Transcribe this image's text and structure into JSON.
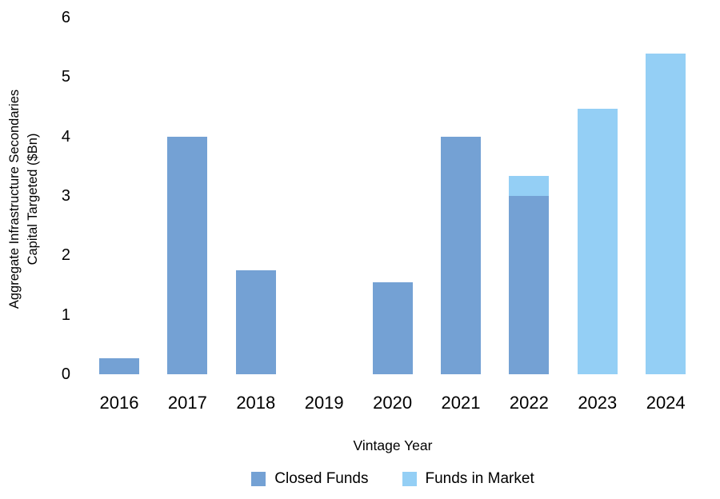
{
  "figure": {
    "background": "#ffffff",
    "text_color": "#000000"
  },
  "chart_data": {
    "type": "bar",
    "stacked": true,
    "title": "",
    "xlabel": "Vintage Year",
    "ylabel": "Aggregate Infrastructure Secondaries Capital Targeted ($Bn)",
    "ylabel_lines": [
      "Aggregate Infrastructure Secondaries",
      "Capital Targeted ($Bn)"
    ],
    "categories": [
      "2016",
      "2017",
      "2018",
      "2019",
      "2020",
      "2021",
      "2022",
      "2023",
      "2024"
    ],
    "series": [
      {
        "name": "Closed Funds",
        "color": "#74a1d4",
        "values": [
          0.27,
          4.0,
          1.75,
          0,
          1.55,
          4.0,
          3.0,
          0,
          0
        ]
      },
      {
        "name": "Funds in Market",
        "color": "#94cff5",
        "values": [
          0,
          0,
          0,
          0,
          0,
          0,
          0.33,
          4.47,
          5.4
        ]
      }
    ],
    "ylim": [
      0,
      6
    ],
    "yticks": [
      0,
      1,
      2,
      3,
      4,
      5,
      6
    ],
    "grid": false,
    "axis_lines": false,
    "legend_position": "bottom"
  }
}
